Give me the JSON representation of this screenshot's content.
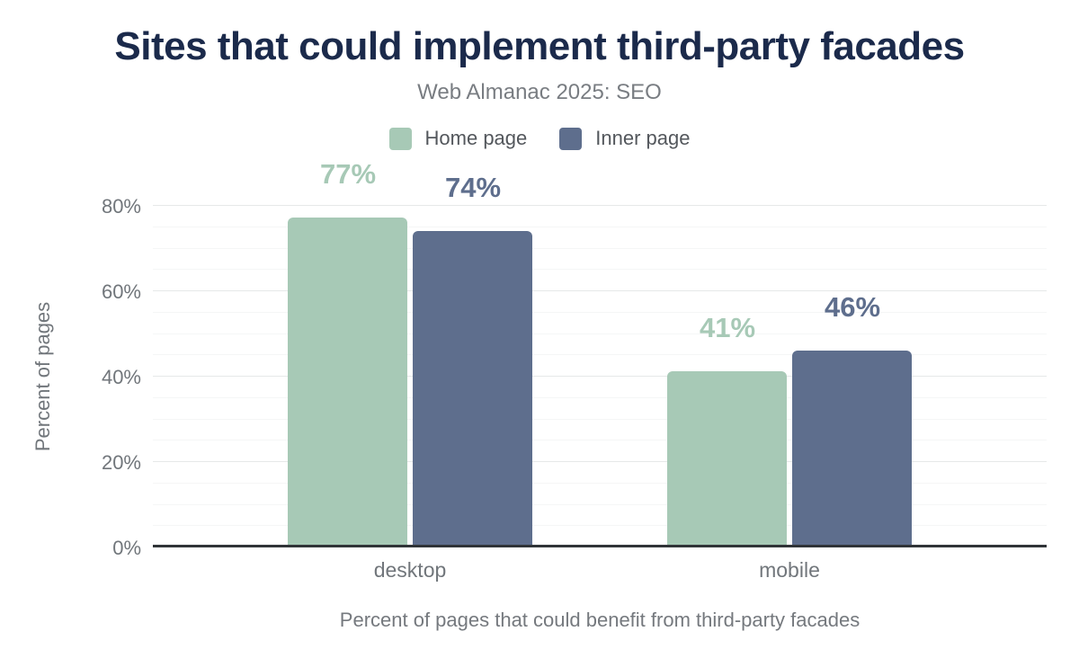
{
  "chart": {
    "title": "Sites that could implement third-party facades",
    "subtitle": "Web Almanac 2025: SEO",
    "footer": "Percent of pages that could benefit from third-party facades"
  },
  "chart_data": {
    "type": "bar",
    "title": "Sites that could implement third-party facades",
    "subtitle": "Web Almanac 2025: SEO",
    "categories": [
      "desktop",
      "mobile"
    ],
    "series": [
      {
        "name": "Home page",
        "color": "#a7c9b6",
        "values": [
          77,
          41
        ],
        "value_labels": [
          "77%",
          "41%"
        ]
      },
      {
        "name": "Inner page",
        "color": "#5e6e8d",
        "values": [
          74,
          46
        ],
        "value_labels": [
          "74%",
          "46%"
        ]
      }
    ],
    "xlabel": "Percent of pages that could benefit from third-party facades",
    "ylabel": "Percent of pages",
    "ylim": [
      0,
      80
    ],
    "yticks": [
      0,
      20,
      40,
      60,
      80
    ],
    "ytick_labels": [
      "0%",
      "20%",
      "40%",
      "60%",
      "80%"
    ],
    "minor_tick_step": 5,
    "grid": true,
    "legend_position": "top-center"
  },
  "colors": {
    "title_text": "#1b2a4b",
    "muted_text": "#71767b",
    "legend_text": "#53575c",
    "axis_line": "#303438",
    "grid_major": "#e6e8e9",
    "grid_minor": "#f5f6f6",
    "background": "#ffffff"
  }
}
